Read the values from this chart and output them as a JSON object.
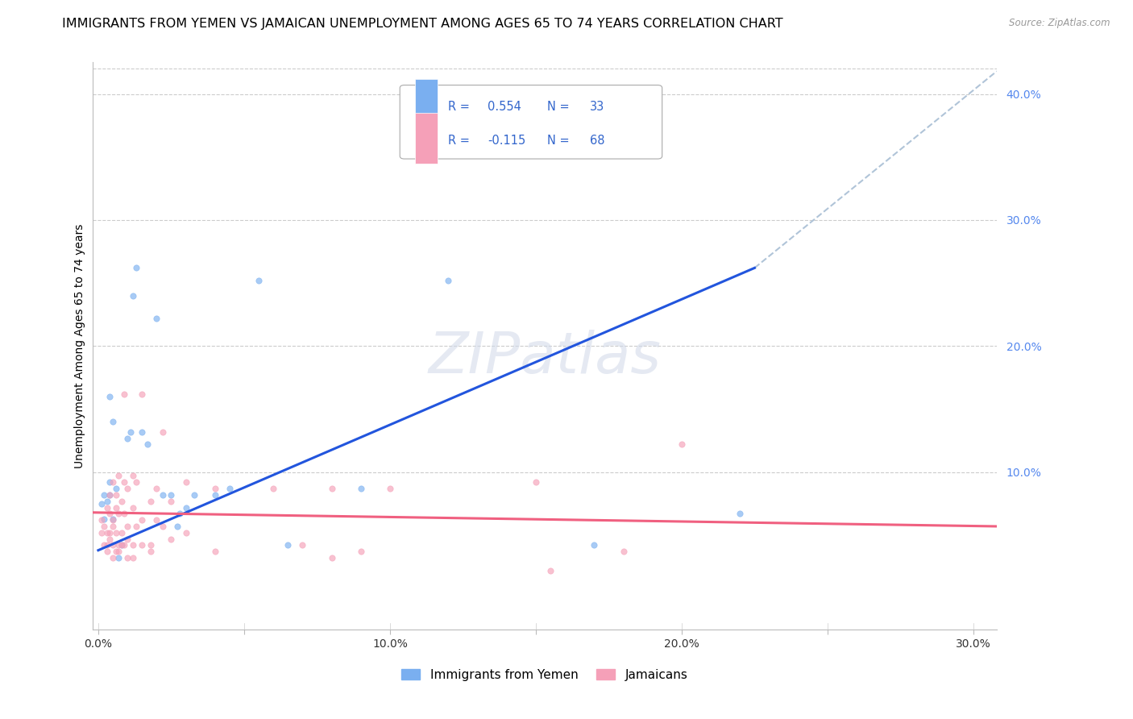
{
  "title": "IMMIGRANTS FROM YEMEN VS JAMAICAN UNEMPLOYMENT AMONG AGES 65 TO 74 YEARS CORRELATION CHART",
  "source": "Source: ZipAtlas.com",
  "ylabel": "Unemployment Among Ages 65 to 74 years",
  "x_tick_labels": [
    "0.0%",
    "",
    "10.0%",
    "",
    "20.0%",
    "",
    "30.0%"
  ],
  "x_tick_vals": [
    0.0,
    0.05,
    0.1,
    0.15,
    0.2,
    0.25,
    0.3
  ],
  "y_tick_labels": [
    "10.0%",
    "20.0%",
    "30.0%",
    "40.0%"
  ],
  "y_tick_vals": [
    0.1,
    0.2,
    0.3,
    0.4
  ],
  "xlim": [
    -0.002,
    0.308
  ],
  "ylim": [
    -0.025,
    0.425
  ],
  "blue_scatter": [
    [
      0.001,
      0.075
    ],
    [
      0.002,
      0.082
    ],
    [
      0.002,
      0.063
    ],
    [
      0.003,
      0.077
    ],
    [
      0.004,
      0.082
    ],
    [
      0.004,
      0.092
    ],
    [
      0.004,
      0.16
    ],
    [
      0.005,
      0.14
    ],
    [
      0.005,
      0.063
    ],
    [
      0.006,
      0.087
    ],
    [
      0.007,
      0.032
    ],
    [
      0.008,
      0.042
    ],
    [
      0.01,
      0.127
    ],
    [
      0.011,
      0.132
    ],
    [
      0.012,
      0.24
    ],
    [
      0.013,
      0.262
    ],
    [
      0.015,
      0.132
    ],
    [
      0.017,
      0.122
    ],
    [
      0.02,
      0.222
    ],
    [
      0.022,
      0.082
    ],
    [
      0.025,
      0.082
    ],
    [
      0.027,
      0.057
    ],
    [
      0.028,
      0.067
    ],
    [
      0.03,
      0.072
    ],
    [
      0.033,
      0.082
    ],
    [
      0.04,
      0.082
    ],
    [
      0.045,
      0.087
    ],
    [
      0.055,
      0.252
    ],
    [
      0.065,
      0.042
    ],
    [
      0.09,
      0.087
    ],
    [
      0.12,
      0.252
    ],
    [
      0.17,
      0.042
    ],
    [
      0.22,
      0.067
    ]
  ],
  "pink_scatter": [
    [
      0.001,
      0.062
    ],
    [
      0.001,
      0.052
    ],
    [
      0.002,
      0.057
    ],
    [
      0.002,
      0.042
    ],
    [
      0.003,
      0.072
    ],
    [
      0.003,
      0.052
    ],
    [
      0.003,
      0.042
    ],
    [
      0.003,
      0.037
    ],
    [
      0.004,
      0.082
    ],
    [
      0.004,
      0.067
    ],
    [
      0.004,
      0.052
    ],
    [
      0.004,
      0.047
    ],
    [
      0.005,
      0.092
    ],
    [
      0.005,
      0.062
    ],
    [
      0.005,
      0.057
    ],
    [
      0.005,
      0.042
    ],
    [
      0.005,
      0.032
    ],
    [
      0.006,
      0.082
    ],
    [
      0.006,
      0.072
    ],
    [
      0.006,
      0.052
    ],
    [
      0.006,
      0.037
    ],
    [
      0.007,
      0.097
    ],
    [
      0.007,
      0.067
    ],
    [
      0.007,
      0.042
    ],
    [
      0.007,
      0.037
    ],
    [
      0.008,
      0.077
    ],
    [
      0.008,
      0.052
    ],
    [
      0.008,
      0.042
    ],
    [
      0.009,
      0.162
    ],
    [
      0.009,
      0.092
    ],
    [
      0.009,
      0.067
    ],
    [
      0.009,
      0.042
    ],
    [
      0.01,
      0.087
    ],
    [
      0.01,
      0.057
    ],
    [
      0.01,
      0.047
    ],
    [
      0.01,
      0.032
    ],
    [
      0.012,
      0.097
    ],
    [
      0.012,
      0.072
    ],
    [
      0.012,
      0.042
    ],
    [
      0.012,
      0.032
    ],
    [
      0.013,
      0.092
    ],
    [
      0.013,
      0.057
    ],
    [
      0.015,
      0.162
    ],
    [
      0.015,
      0.062
    ],
    [
      0.015,
      0.042
    ],
    [
      0.018,
      0.077
    ],
    [
      0.018,
      0.042
    ],
    [
      0.018,
      0.037
    ],
    [
      0.02,
      0.087
    ],
    [
      0.02,
      0.062
    ],
    [
      0.022,
      0.132
    ],
    [
      0.022,
      0.057
    ],
    [
      0.025,
      0.077
    ],
    [
      0.025,
      0.047
    ],
    [
      0.03,
      0.092
    ],
    [
      0.03,
      0.052
    ],
    [
      0.04,
      0.087
    ],
    [
      0.04,
      0.037
    ],
    [
      0.06,
      0.087
    ],
    [
      0.07,
      0.042
    ],
    [
      0.08,
      0.087
    ],
    [
      0.08,
      0.032
    ],
    [
      0.09,
      0.037
    ],
    [
      0.1,
      0.087
    ],
    [
      0.15,
      0.092
    ],
    [
      0.155,
      0.022
    ],
    [
      0.18,
      0.037
    ],
    [
      0.2,
      0.122
    ]
  ],
  "blue_line_x": [
    0.0,
    0.225
  ],
  "blue_line_y": [
    0.038,
    0.262
  ],
  "pink_line_x": [
    -0.002,
    0.308
  ],
  "pink_line_y": [
    0.068,
    0.057
  ],
  "dashed_line_x": [
    0.225,
    0.308
  ],
  "dashed_line_y": [
    0.262,
    0.418
  ],
  "watermark": "ZIPatlas",
  "title_fontsize": 11.5,
  "axis_label_fontsize": 10,
  "tick_fontsize": 10,
  "scatter_size": 28,
  "scatter_alpha": 0.65,
  "blue_color": "#7aaff0",
  "pink_color": "#f5a0b8",
  "trend_blue": "#2255dd",
  "trend_pink": "#f06080",
  "dashed_color": "#b0c4d8",
  "grid_color": "#cccccc",
  "right_axis_color": "#5588ee",
  "legend_text_color": "#3366cc"
}
